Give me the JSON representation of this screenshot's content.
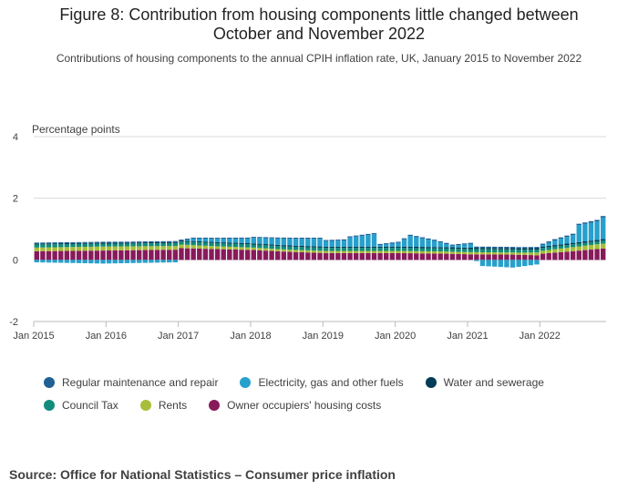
{
  "title_line1": "Figure 8: Contribution from housing components little changed between",
  "title_line2": "October and November 2022",
  "subtitle": "Contributions of housing components to the annual CPIH inflation rate, UK, January 2015 to November 2022",
  "source": "Source: Office for National Statistics – Consumer price inflation",
  "chart_data": {
    "type": "bar",
    "stacked": true,
    "ylabel": "Percentage points",
    "ylim": [
      -2,
      4
    ],
    "yticks": [
      -2,
      0,
      2,
      4
    ],
    "xticks": [
      "Jan 2015",
      "Jan 2016",
      "Jan 2017",
      "Jan 2018",
      "Jan 2019",
      "Jan 2020",
      "Jan 2021",
      "Jan 2022"
    ],
    "x_range": [
      "2015-01",
      "2022-11"
    ],
    "grid": true,
    "legend_position": "bottom",
    "series": [
      {
        "name": "Regular maintenance and repair",
        "color": "#206095",
        "segments": [
          [
            0,
            0.03
          ],
          [
            23,
            0.03
          ],
          [
            24,
            0.03
          ],
          [
            83,
            0.04
          ],
          [
            95,
            0.05
          ]
        ]
      },
      {
        "name": "Electricity, gas and other fuels",
        "color": "#27A0CC",
        "segments": [
          [
            0,
            -0.08
          ],
          [
            11,
            -0.12
          ],
          [
            23,
            -0.08
          ],
          [
            24,
            0.0
          ],
          [
            26,
            0.08
          ],
          [
            35,
            0.15
          ],
          [
            36,
            0.18
          ],
          [
            47,
            0.25
          ],
          [
            48,
            0.18
          ],
          [
            51,
            0.2
          ],
          [
            52,
            0.3
          ],
          [
            56,
            0.4
          ],
          [
            57,
            0.05
          ],
          [
            60,
            0.12
          ],
          [
            62,
            0.35
          ],
          [
            66,
            0.2
          ],
          [
            69,
            0.05
          ],
          [
            72,
            0.12
          ],
          [
            74,
            -0.2
          ],
          [
            79,
            -0.25
          ],
          [
            83,
            -0.15
          ],
          [
            84,
            0.05
          ],
          [
            86,
            0.15
          ],
          [
            89,
            0.25
          ],
          [
            90,
            0.55
          ],
          [
            93,
            0.6
          ],
          [
            95,
            0.8
          ],
          [
            96,
            1.6
          ],
          [
            99,
            1.75
          ],
          [
            100,
            1.85
          ],
          [
            103,
            1.8
          ],
          [
            104,
            2.55
          ],
          [
            106,
            2.55
          ]
        ]
      },
      {
        "name": "Water and sewerage",
        "color": "#003C57",
        "segments": [
          [
            0,
            0.03
          ],
          [
            106,
            0.05
          ]
        ]
      },
      {
        "name": "Council Tax",
        "color": "#118C7B",
        "segments": [
          [
            0,
            0.1
          ],
          [
            15,
            0.09
          ],
          [
            27,
            0.1
          ],
          [
            39,
            0.1
          ],
          [
            51,
            0.1
          ],
          [
            63,
            0.1
          ],
          [
            75,
            0.1
          ],
          [
            87,
            0.09
          ],
          [
            99,
            0.1
          ],
          [
            106,
            0.1
          ]
        ]
      },
      {
        "name": "Rents",
        "color": "#A8BD3A",
        "segments": [
          [
            0,
            0.12
          ],
          [
            11,
            0.13
          ],
          [
            23,
            0.12
          ],
          [
            30,
            0.09
          ],
          [
            40,
            0.07
          ],
          [
            55,
            0.07
          ],
          [
            70,
            0.07
          ],
          [
            80,
            0.07
          ],
          [
            92,
            0.15
          ],
          [
            100,
            0.2
          ],
          [
            106,
            0.24
          ]
        ]
      },
      {
        "name": "Owner occupiers' housing costs",
        "color": "#871A5B",
        "segments": [
          [
            0,
            0.28
          ],
          [
            10,
            0.3
          ],
          [
            23,
            0.33
          ],
          [
            24,
            0.38
          ],
          [
            30,
            0.35
          ],
          [
            36,
            0.32
          ],
          [
            42,
            0.26
          ],
          [
            48,
            0.22
          ],
          [
            60,
            0.22
          ],
          [
            68,
            0.2
          ],
          [
            72,
            0.18
          ],
          [
            79,
            0.17
          ],
          [
            83,
            0.15
          ],
          [
            84,
            0.2
          ],
          [
            90,
            0.3
          ],
          [
            96,
            0.4
          ],
          [
            100,
            0.5
          ],
          [
            106,
            0.6
          ]
        ]
      }
    ]
  }
}
